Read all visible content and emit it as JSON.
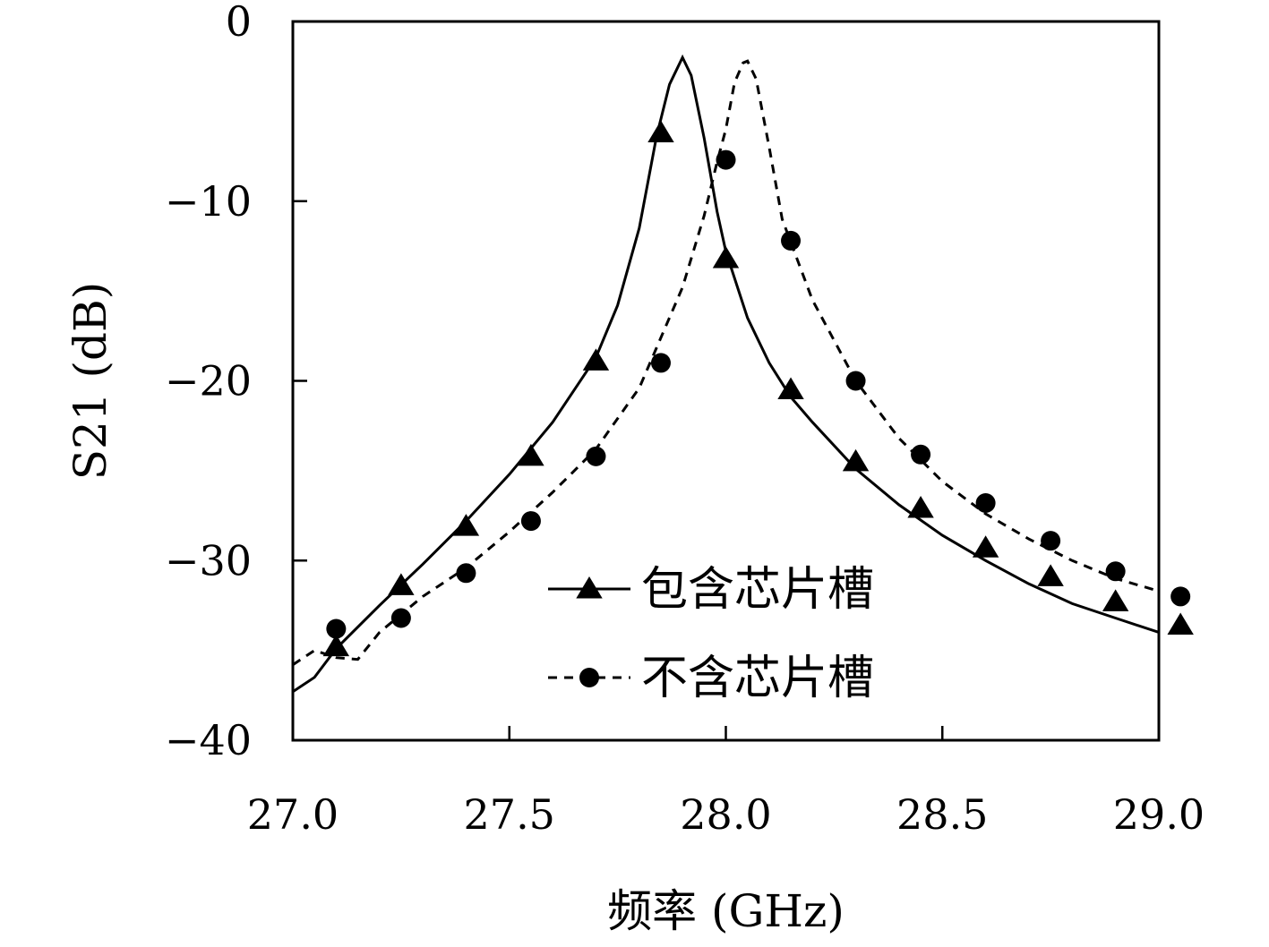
{
  "chart_data": {
    "type": "line",
    "xlabel": "频率 (GHz)",
    "ylabel": "S21 (dB)",
    "xlim": [
      27.0,
      29.0
    ],
    "ylim": [
      -40,
      0
    ],
    "xticks": [
      "27.0",
      "27.5",
      "28.0",
      "28.5",
      "29.0"
    ],
    "yticks": [
      "0",
      "−10",
      "−20",
      "−30",
      "−40"
    ],
    "grid": false,
    "legend_position": "lower-right",
    "series": [
      {
        "name": "包含芯片槽",
        "line": "solid",
        "marker": "triangle",
        "color": "#000000",
        "curve": {
          "x": [
            27.0,
            27.05,
            27.1,
            27.2,
            27.3,
            27.4,
            27.5,
            27.6,
            27.7,
            27.75,
            27.8,
            27.84,
            27.87,
            27.9,
            27.92,
            27.95,
            27.98,
            28.0,
            28.05,
            28.1,
            28.15,
            28.2,
            28.3,
            28.4,
            28.5,
            28.6,
            28.7,
            28.8,
            28.9,
            29.0,
            29.05
          ],
          "y": [
            -37.3,
            -36.5,
            -34.9,
            -32.5,
            -30.2,
            -27.8,
            -25.2,
            -22.3,
            -18.7,
            -15.8,
            -11.5,
            -6.4,
            -3.5,
            -2.0,
            -3.0,
            -6.5,
            -10.6,
            -12.8,
            -16.5,
            -19.0,
            -20.9,
            -22.3,
            -24.9,
            -26.9,
            -28.6,
            -30.0,
            -31.3,
            -32.4,
            -33.2,
            -34.0,
            -34.4
          ]
        },
        "markers": {
          "x": [
            27.1,
            27.25,
            27.4,
            27.55,
            27.7,
            27.85,
            28.0,
            28.15,
            28.3,
            28.45,
            28.6,
            28.75,
            28.9,
            29.05
          ],
          "y": [
            -34.8,
            -31.4,
            -28.1,
            -24.2,
            -18.9,
            -6.2,
            -13.2,
            -20.5,
            -24.5,
            -27.1,
            -29.3,
            -30.9,
            -32.3,
            -33.6
          ]
        }
      },
      {
        "name": "不含芯片槽",
        "line": "dashed",
        "marker": "circle",
        "color": "#000000",
        "curve": {
          "x": [
            27.0,
            27.05,
            27.1,
            27.15,
            27.2,
            27.3,
            27.4,
            27.5,
            27.6,
            27.7,
            27.8,
            27.9,
            27.95,
            27.98,
            28.0,
            28.02,
            28.04,
            28.05,
            28.07,
            28.1,
            28.13,
            28.2,
            28.3,
            28.4,
            28.5,
            28.6,
            28.7,
            28.8,
            28.9,
            29.0,
            29.05
          ],
          "y": [
            -35.8,
            -35.0,
            -35.4,
            -35.5,
            -34.0,
            -32.0,
            -30.4,
            -28.4,
            -26.2,
            -23.8,
            -20.4,
            -14.8,
            -10.8,
            -7.8,
            -6.0,
            -3.4,
            -2.3,
            -2.2,
            -3.2,
            -7.0,
            -11.0,
            -15.5,
            -20.0,
            -23.2,
            -25.6,
            -27.4,
            -28.8,
            -30.0,
            -31.0,
            -31.7,
            -32.1
          ]
        },
        "markers": {
          "x": [
            27.1,
            27.25,
            27.4,
            27.55,
            27.7,
            27.85,
            28.0,
            28.15,
            28.3,
            28.45,
            28.6,
            28.75,
            28.9,
            29.05
          ],
          "y": [
            -33.8,
            -33.2,
            -30.7,
            -27.8,
            -24.2,
            -19.0,
            -7.7,
            -12.2,
            -20.0,
            -24.1,
            -26.8,
            -28.9,
            -30.6,
            -32.0
          ]
        }
      }
    ]
  }
}
